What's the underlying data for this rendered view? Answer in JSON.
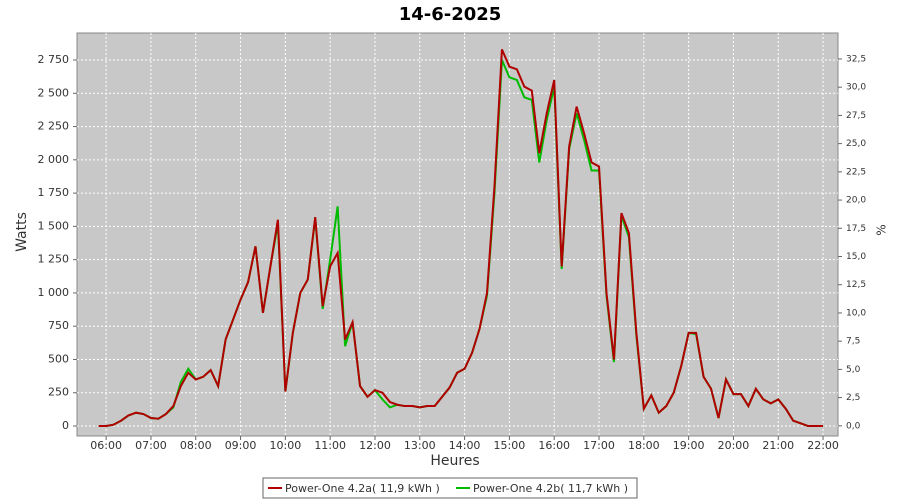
{
  "chart_data": {
    "type": "line",
    "title": "14-6-2025",
    "xlabel": "Heures",
    "ylabel": "Watts",
    "y2label": "%",
    "x": [
      "05:50",
      "06:00",
      "06:10",
      "06:20",
      "06:30",
      "06:40",
      "06:50",
      "07:00",
      "07:10",
      "07:20",
      "07:30",
      "07:40",
      "07:50",
      "08:00",
      "08:10",
      "08:20",
      "08:30",
      "08:40",
      "08:50",
      "09:00",
      "09:10",
      "09:20",
      "09:30",
      "09:40",
      "09:50",
      "10:00",
      "10:10",
      "10:20",
      "10:30",
      "10:40",
      "10:50",
      "11:00",
      "11:10",
      "11:20",
      "11:30",
      "11:40",
      "11:50",
      "12:00",
      "12:10",
      "12:20",
      "12:30",
      "12:40",
      "12:50",
      "13:00",
      "13:10",
      "13:20",
      "13:30",
      "13:40",
      "13:50",
      "14:00",
      "14:10",
      "14:20",
      "14:30",
      "14:40",
      "14:50",
      "15:00",
      "15:10",
      "15:20",
      "15:30",
      "15:40",
      "15:50",
      "16:00",
      "16:10",
      "16:20",
      "16:30",
      "16:40",
      "16:50",
      "17:00",
      "17:10",
      "17:20",
      "17:30",
      "17:40",
      "17:50",
      "18:00",
      "18:10",
      "18:20",
      "18:30",
      "18:40",
      "18:50",
      "19:00",
      "19:10",
      "19:20",
      "19:30",
      "19:40",
      "19:50",
      "20:00",
      "20:10",
      "20:20",
      "20:30",
      "20:40",
      "20:50",
      "21:00",
      "21:10",
      "21:20",
      "21:30",
      "21:40",
      "21:50",
      "22:00"
    ],
    "series": [
      {
        "name": "Power-One 4.2a( 11,9 kWh )",
        "color": "#b00000",
        "values": [
          0,
          0,
          10,
          40,
          80,
          100,
          90,
          60,
          55,
          90,
          150,
          300,
          400,
          350,
          370,
          420,
          300,
          650,
          800,
          950,
          1080,
          1350,
          850,
          1200,
          1550,
          260,
          700,
          1000,
          1100,
          1570,
          900,
          1200,
          1300,
          650,
          780,
          300,
          220,
          270,
          250,
          180,
          160,
          150,
          150,
          140,
          150,
          150,
          220,
          290,
          400,
          430,
          550,
          730,
          1000,
          1800,
          2830,
          2700,
          2680,
          2550,
          2520,
          2050,
          2350,
          2600,
          1200,
          2100,
          2400,
          2200,
          1980,
          1950,
          1000,
          500,
          1600,
          1450,
          700,
          130,
          230,
          100,
          150,
          250,
          450,
          700,
          700,
          370,
          280,
          60,
          350,
          240,
          240,
          150,
          280,
          200,
          170,
          200,
          130,
          40,
          20,
          0,
          0,
          0
        ]
      },
      {
        "name": "Power-One 4.2b( 11,7 kWh )",
        "color": "#00bb00",
        "values": [
          0,
          0,
          10,
          40,
          80,
          100,
          90,
          60,
          55,
          90,
          140,
          330,
          430,
          350,
          370,
          420,
          300,
          650,
          800,
          950,
          1080,
          1350,
          850,
          1200,
          1520,
          260,
          700,
          1000,
          1100,
          1560,
          880,
          1250,
          1650,
          600,
          780,
          300,
          220,
          270,
          200,
          140,
          160,
          150,
          150,
          140,
          150,
          150,
          220,
          290,
          400,
          430,
          550,
          730,
          980,
          1750,
          2750,
          2620,
          2600,
          2470,
          2450,
          1980,
          2300,
          2550,
          1180,
          2080,
          2350,
          2150,
          1920,
          1920,
          980,
          480,
          1580,
          1420,
          680,
          130,
          230,
          100,
          150,
          250,
          450,
          700,
          690,
          370,
          280,
          60,
          350,
          240,
          240,
          150,
          280,
          200,
          170,
          200,
          130,
          40,
          20,
          0,
          0,
          0
        ]
      }
    ],
    "xlim": [
      "05:21",
      "22:20"
    ],
    "xticks": [
      "06:00",
      "07:00",
      "08:00",
      "09:00",
      "10:00",
      "11:00",
      "12:00",
      "13:00",
      "14:00",
      "15:00",
      "16:00",
      "17:00",
      "18:00",
      "19:00",
      "20:00",
      "21:00",
      "22:00"
    ],
    "ylim": [
      -75,
      2953
    ],
    "yticks": [
      0,
      250,
      500,
      750,
      {
        "value": 1000,
        "label": "1 000"
      },
      {
        "value": 1250,
        "label": "1 250"
      },
      {
        "value": 1500,
        "label": "1 500"
      },
      {
        "value": 1750,
        "label": "1 750"
      },
      {
        "value": 2000,
        "label": "2 000"
      },
      {
        "value": 2250,
        "label": "2 250"
      },
      {
        "value": 2500,
        "label": "2 500"
      },
      {
        "value": 2750,
        "label": "2 750"
      }
    ],
    "y2lim": [
      -0.9,
      34.8
    ],
    "y2ticks": [
      {
        "value": 0,
        "label": "0,0"
      },
      {
        "value": 2.5,
        "label": "2,5"
      },
      {
        "value": 5,
        "label": "5,0"
      },
      {
        "value": 7.5,
        "label": "7,5"
      },
      {
        "value": 10,
        "label": "10,0"
      },
      {
        "value": 12.5,
        "label": "12,5"
      },
      {
        "value": 15,
        "label": "15,0"
      },
      {
        "value": 17.5,
        "label": "17,5"
      },
      {
        "value": 20,
        "label": "20,0"
      },
      {
        "value": 22.5,
        "label": "22,5"
      },
      {
        "value": 25,
        "label": "25,0"
      },
      {
        "value": 27.5,
        "label": "27,5"
      },
      {
        "value": 30,
        "label": "30,0"
      },
      {
        "value": 32.5,
        "label": "32,5"
      }
    ],
    "grid": true
  }
}
